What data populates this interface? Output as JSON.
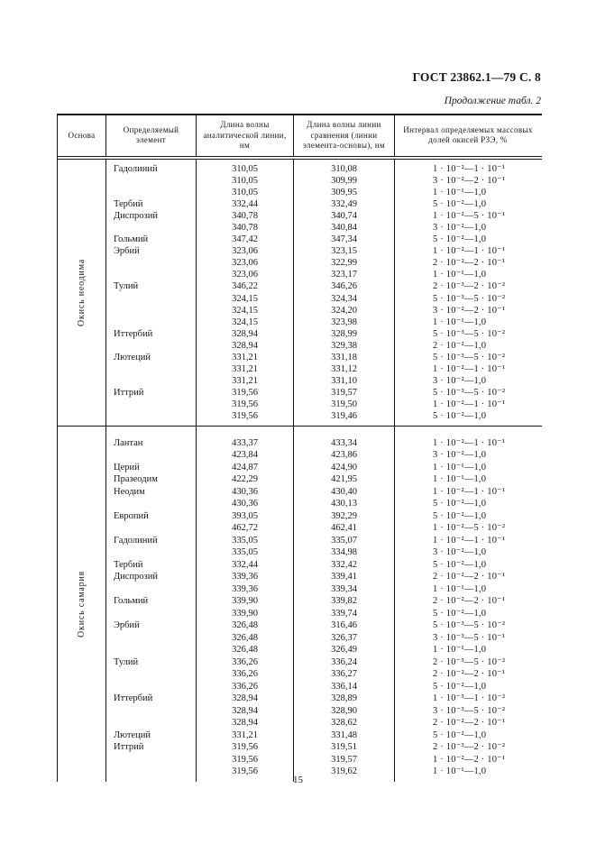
{
  "page": {
    "doc_ref": "ГОСТ 23862.1—79 С. 8",
    "continuation": "Продолжение табл. 2",
    "page_number": "15"
  },
  "table": {
    "headers": {
      "base": "Основа",
      "element": "Определяемый элемент",
      "analytical": "Длина волны аналитической линии, нм",
      "comparison": "Длина волны линии сравнения (линии элемента-основы), нм",
      "interval": "Интервал определяемых массовых долей окисей РЗЭ, %"
    },
    "sections": [
      {
        "base": "Окись неодима",
        "rows": [
          {
            "element": "Гадолиний",
            "analytical": "310,05",
            "comparison": "310,08",
            "interval": "1 · 10⁻²—1 · 10⁻¹"
          },
          {
            "element": "",
            "analytical": "310,05",
            "comparison": "309,99",
            "interval": "3 · 10⁻²—2 · 10⁻¹"
          },
          {
            "element": "",
            "analytical": "310,05",
            "comparison": "309,95",
            "interval": "1 · 10⁻¹—1,0"
          },
          {
            "element": "Тербий",
            "analytical": "332,44",
            "comparison": "332,49",
            "interval": "5 · 10⁻²—1,0"
          },
          {
            "element": "Диспрозий",
            "analytical": "340,78",
            "comparison": "340,74",
            "interval": "1 · 10⁻²—5 · 10⁻¹"
          },
          {
            "element": "",
            "analytical": "340,78",
            "comparison": "340,84",
            "interval": "3 · 10⁻²—1,0"
          },
          {
            "element": "Гольмий",
            "analytical": "347,42",
            "comparison": "347,34",
            "interval": "5 · 10⁻²—1,0"
          },
          {
            "element": "Эрбий",
            "analytical": "323,06",
            "comparison": "323,15",
            "interval": "1 · 10⁻²—1 · 10⁻¹"
          },
          {
            "element": "",
            "analytical": "323,06",
            "comparison": "322,99",
            "interval": "2 · 10⁻²—2 · 10⁻¹"
          },
          {
            "element": "",
            "analytical": "323,06",
            "comparison": "323,17",
            "interval": "1 · 10⁻¹—1,0"
          },
          {
            "element": "Тулий",
            "analytical": "346,22",
            "comparison": "346,26",
            "interval": "2 · 10⁻³—2 · 10⁻²"
          },
          {
            "element": "",
            "analytical": "324,15",
            "comparison": "324,34",
            "interval": "5 · 10⁻³—5 · 10⁻²"
          },
          {
            "element": "",
            "analytical": "324,15",
            "comparison": "324,20",
            "interval": "3 · 10⁻²—2 · 10⁻¹"
          },
          {
            "element": "",
            "analytical": "324,15",
            "comparison": "323,98",
            "interval": "1 · 10⁻¹—1,0"
          },
          {
            "element": "Иттербий",
            "analytical": "328,94",
            "comparison": "328,99",
            "interval": "5 · 10⁻³—5 · 10⁻²"
          },
          {
            "element": "",
            "analytical": "328,94",
            "comparison": "329,38",
            "interval": "2 · 10⁻²—1,0"
          },
          {
            "element": "Лютеций",
            "analytical": "331,21",
            "comparison": "331,18",
            "interval": "5 · 10⁻³—5 · 10⁻²"
          },
          {
            "element": "",
            "analytical": "331,21",
            "comparison": "331,12",
            "interval": "1 · 10⁻²—1 · 10⁻¹"
          },
          {
            "element": "",
            "analytical": "331,21",
            "comparison": "331,10",
            "interval": "3 · 10⁻²—1,0"
          },
          {
            "element": "Иттрий",
            "analytical": "319,56",
            "comparison": "319,57",
            "interval": "5 · 10⁻³—5 · 10⁻²"
          },
          {
            "element": "",
            "analytical": "319,56",
            "comparison": "319,50",
            "interval": "1 · 10⁻²—1 · 10⁻¹"
          },
          {
            "element": "",
            "analytical": "319,56",
            "comparison": "319,46",
            "interval": "5 · 10⁻²—1,0"
          }
        ]
      },
      {
        "base": "Окись самария",
        "rows": [
          {
            "element": "Лантан",
            "analytical": "433,37",
            "comparison": "433,34",
            "interval": "1 · 10⁻²—1 · 10⁻¹"
          },
          {
            "element": "",
            "analytical": "423,84",
            "comparison": "423,86",
            "interval": "3 · 10⁻²—1,0"
          },
          {
            "element": "Церий",
            "analytical": "424,87",
            "comparison": "424,90",
            "interval": "1 · 10⁻¹—1,0"
          },
          {
            "element": "Празеодим",
            "analytical": "422,29",
            "comparison": "421,95",
            "interval": "1 · 10⁻¹—1,0"
          },
          {
            "element": "Неодим",
            "analytical": "430,36",
            "comparison": "430,40",
            "interval": "1 · 10⁻²—1 · 10⁻¹"
          },
          {
            "element": "",
            "analytical": "430,36",
            "comparison": "430,13",
            "interval": "5 · 10⁻²—1,0"
          },
          {
            "element": "Европий",
            "analytical": "393,05",
            "comparison": "392,29",
            "interval": "5 · 10⁻²—1,0"
          },
          {
            "element": "",
            "analytical": "462,72",
            "comparison": "462,41",
            "interval": "1 · 10⁻²—5 · 10⁻²"
          },
          {
            "element": "Гадолиний",
            "analytical": "335,05",
            "comparison": "335,07",
            "interval": "1 · 10⁻²—1 · 10⁻¹"
          },
          {
            "element": "",
            "analytical": "335,05",
            "comparison": "334,98",
            "interval": "3 · 10⁻²—1,0"
          },
          {
            "element": "Тербий",
            "analytical": "332,44",
            "comparison": "332,42",
            "interval": "5 · 10⁻²—1,0"
          },
          {
            "element": "Диспрозий",
            "analytical": "339,36",
            "comparison": "339,41",
            "interval": "2 · 10⁻²—2 · 10⁻¹"
          },
          {
            "element": "",
            "analytical": "339,36",
            "comparison": "339,34",
            "interval": "1 · 10⁻¹—1,0"
          },
          {
            "element": "Гольмий",
            "analytical": "339,90",
            "comparison": "339,82",
            "interval": "2 · 10⁻²—2 · 10⁻¹"
          },
          {
            "element": "",
            "analytical": "339,90",
            "comparison": "339,74",
            "interval": "5 · 10⁻²—1,0"
          },
          {
            "element": "Эрбий",
            "analytical": "326,48",
            "comparison": "316,46",
            "interval": "5 · 10⁻³—5 · 10⁻²"
          },
          {
            "element": "",
            "analytical": "326,48",
            "comparison": "326,37",
            "interval": "3 · 10⁻³—5 · 10⁻¹"
          },
          {
            "element": "",
            "analytical": "326,48",
            "comparison": "326,49",
            "interval": "1 · 10⁻¹—1,0"
          },
          {
            "element": "Тулий",
            "analytical": "336,26",
            "comparison": "336,24",
            "interval": "2 · 10⁻³—5 · 10⁻²"
          },
          {
            "element": "",
            "analytical": "336,26",
            "comparison": "336,27",
            "interval": "2 · 10⁻²—2 · 10⁻¹"
          },
          {
            "element": "",
            "analytical": "336,26",
            "comparison": "336,14",
            "interval": "5 · 10⁻²—1,0"
          },
          {
            "element": "Иттербий",
            "analytical": "328,94",
            "comparison": "328,89",
            "interval": "1 · 10⁻³—1 · 10⁻²"
          },
          {
            "element": "",
            "analytical": "328,94",
            "comparison": "328,90",
            "interval": "3 · 10⁻³—5 · 10⁻²"
          },
          {
            "element": "",
            "analytical": "328,94",
            "comparison": "328,62",
            "interval": "2 · 10⁻²—2 · 10⁻¹"
          },
          {
            "element": "Лютеций",
            "analytical": "331,21",
            "comparison": "331,48",
            "interval": "5 · 10⁻²—1,0"
          },
          {
            "element": "Иттрий",
            "analytical": "319,56",
            "comparison": "319,51",
            "interval": "2 · 10⁻³—2 · 10⁻²"
          },
          {
            "element": "",
            "analytical": "319,56",
            "comparison": "319,57",
            "interval": "1 · 10⁻²—2 · 10⁻¹"
          },
          {
            "element": "",
            "analytical": "319,56",
            "comparison": "319,62",
            "interval": "1 · 10⁻¹—1,0"
          }
        ]
      }
    ]
  }
}
